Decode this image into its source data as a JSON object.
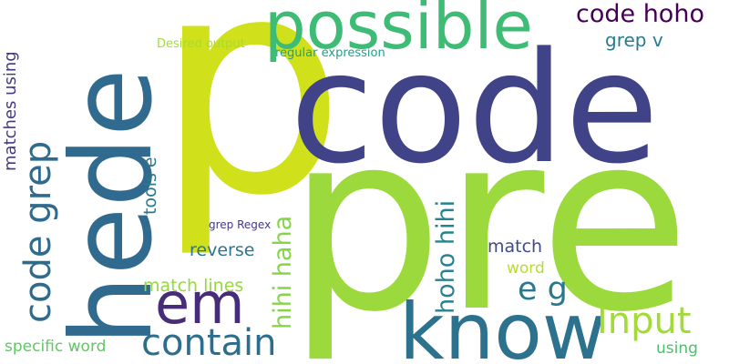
{
  "words": {
    "p": {
      "text": "p",
      "color": "#d0e11c"
    },
    "pre": {
      "text": "pre",
      "color": "#9bd93c"
    },
    "code": {
      "text": "code",
      "color": "#404387"
    },
    "hede": {
      "text": "hede",
      "color": "#306a8e"
    },
    "possible": {
      "text": "possible",
      "color": "#3ebb75"
    },
    "know": {
      "text": "know",
      "color": "#2c718e"
    },
    "em": {
      "text": "em",
      "color": "#472c7a"
    },
    "contain": {
      "text": "contain",
      "color": "#2d6e8e"
    },
    "code_grep": {
      "text": "code grep",
      "color": "#2f6b8e"
    },
    "input": {
      "text": "Input",
      "color": "#a2da37"
    },
    "e_g": {
      "text": "e g",
      "color": "#2a788e"
    },
    "code_hoho": {
      "text": "code hoho",
      "color": "#440154"
    },
    "hihi_haha": {
      "text": "hihi haha",
      "color": "#86d549"
    },
    "hoho_hihi": {
      "text": "hoho hihi",
      "color": "#26828e"
    },
    "grep_v": {
      "text": "grep v",
      "color": "#297b8e"
    },
    "reverse": {
      "text": "reverse",
      "color": "#2b758e"
    },
    "match": {
      "text": "match",
      "color": "#3e4a89"
    },
    "match_lines": {
      "text": "match lines",
      "color": "#95d840"
    },
    "tools_e": {
      "text": "tools e",
      "color": "#2a788e"
    },
    "matches_using": {
      "text": "matches using",
      "color": "#453781"
    },
    "word": {
      "text": "word",
      "color": "#b5de2b"
    },
    "specific_word": {
      "text": "specific word",
      "color": "#5ec962"
    },
    "using": {
      "text": "using",
      "color": "#4ac16d"
    },
    "desired_output": {
      "text": "Desired output",
      "color": "#a5db36"
    },
    "regular_expression": {
      "text": "regular expression",
      "color": "#1f9e89"
    },
    "grep_regex": {
      "text": "grep Regex",
      "color": "#443983"
    }
  }
}
